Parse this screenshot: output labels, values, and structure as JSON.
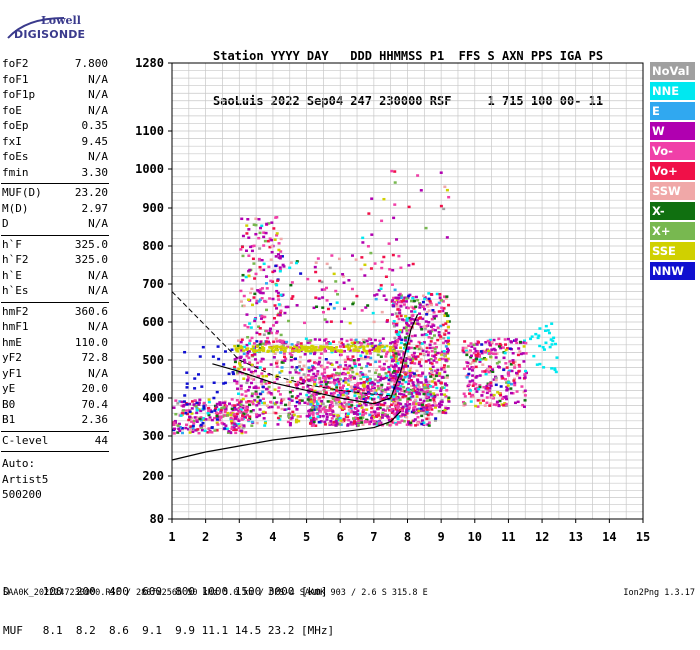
{
  "logo": {
    "top": "Lowell",
    "bottom": "DIGISONDE"
  },
  "header": {
    "line1": "Station YYYY DAY   DDD HHMMSS P1  FFS S AXN PPS IGA PS",
    "line2": "SaoLuis 2022 Sep04 247 230000 RSF     1 715 100 00- 11"
  },
  "params_group1": [
    {
      "label": "foF2",
      "value": "7.800"
    },
    {
      "label": "foF1",
      "value": "N/A"
    },
    {
      "label": "foF1p",
      "value": "N/A"
    },
    {
      "label": "foE",
      "value": "N/A"
    },
    {
      "label": "foEp",
      "value": "0.35"
    },
    {
      "label": "fxI",
      "value": "9.45"
    },
    {
      "label": "foEs",
      "value": "N/A"
    },
    {
      "label": "fmin",
      "value": "3.30"
    }
  ],
  "params_group2": [
    {
      "label": "MUF(D)",
      "value": "23.20"
    },
    {
      "label": "M(D)",
      "value": "2.97"
    },
    {
      "label": "D",
      "value": "N/A"
    }
  ],
  "params_group3": [
    {
      "label": "h`F",
      "value": "325.0"
    },
    {
      "label": "h`F2",
      "value": "325.0"
    },
    {
      "label": "h`E",
      "value": "N/A"
    },
    {
      "label": "h`Es",
      "value": "N/A"
    }
  ],
  "params_group4": [
    {
      "label": "hmF2",
      "value": "360.6"
    },
    {
      "label": "hmF1",
      "value": "N/A"
    },
    {
      "label": "hmE",
      "value": "110.0"
    },
    {
      "label": "yF2",
      "value": "72.8"
    },
    {
      "label": "yF1",
      "value": "N/A"
    },
    {
      "label": "yE",
      "value": "20.0"
    },
    {
      "label": "B0",
      "value": "70.4"
    },
    {
      "label": "B1",
      "value": "2.36"
    }
  ],
  "params_group5": [
    {
      "label": "C-level",
      "value": "44"
    }
  ],
  "auto": {
    "line1": "Auto:",
    "line2": "Artist5",
    "line3": "500200"
  },
  "legend": [
    {
      "label": "NoVal",
      "color": "#a0a0a0"
    },
    {
      "label": "NNE",
      "color": "#00e8f0"
    },
    {
      "label": "E",
      "color": "#30a8f0"
    },
    {
      "label": "W",
      "color": "#b000b0"
    },
    {
      "label": "Vo-",
      "color": "#f040a8"
    },
    {
      "label": "Vo+",
      "color": "#f01048"
    },
    {
      "label": "SSW",
      "color": "#f0a8a8"
    },
    {
      "label": "X-",
      "color": "#107010"
    },
    {
      "label": "X+",
      "color": "#78b850"
    },
    {
      "label": "SSE",
      "color": "#d0d000"
    },
    {
      "label": "NNW",
      "color": "#1010d0"
    }
  ],
  "bottom": {
    "d_line": "D     100  200  400  600  800 1000 1500 3000 [km]",
    "muf_line": "MUF   8.1  8.2  8.6  9.1  9.9 11.1 14.5 23.2 [MHz]"
  },
  "footer": {
    "left": "SAA0K_2022247230000.RSF / 280fx256h 50 kHz 5.0 km / DPS-4 SAA0K 903 / 2.6 S 315.8 E",
    "right": "Ion2Png 1.3.17"
  },
  "chart_data": {
    "type": "scatter",
    "x_ticks": [
      1,
      2,
      3,
      4,
      5,
      6,
      7,
      8,
      9,
      10,
      11,
      12,
      13,
      14,
      15
    ],
    "y_ticks": [
      80,
      200,
      300,
      400,
      500,
      600,
      700,
      800,
      900,
      1000,
      1100,
      1280
    ],
    "xlim": [
      1,
      15
    ],
    "ylim": [
      80,
      1280
    ],
    "grid": true,
    "traces": {
      "lower_curve": [
        [
          1,
          240
        ],
        [
          2,
          260
        ],
        [
          3,
          275
        ],
        [
          4,
          290
        ],
        [
          5,
          300
        ],
        [
          6,
          310
        ],
        [
          7,
          322
        ],
        [
          7.5,
          338
        ],
        [
          7.8,
          365
        ]
      ],
      "dashed_curve": [
        [
          1,
          680
        ],
        [
          2,
          590
        ],
        [
          3,
          500
        ],
        [
          4,
          460
        ],
        [
          5,
          435
        ],
        [
          6,
          420
        ],
        [
          7,
          410
        ],
        [
          7.6,
          405
        ]
      ],
      "profile_curve": [
        [
          2.2,
          490
        ],
        [
          3,
          470
        ],
        [
          4,
          440
        ],
        [
          5,
          420
        ],
        [
          6,
          400
        ],
        [
          7,
          385
        ],
        [
          7.5,
          400
        ],
        [
          7.8,
          470
        ],
        [
          8.1,
          580
        ],
        [
          8.3,
          620
        ]
      ]
    }
  }
}
